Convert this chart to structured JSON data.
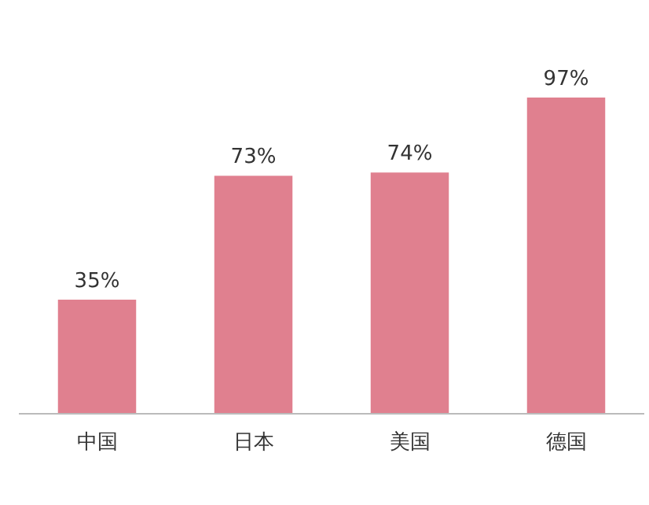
{
  "chart_data": {
    "type": "bar",
    "categories": [
      "中国",
      "日本",
      "美国",
      "德国"
    ],
    "values": [
      35,
      73,
      74,
      97
    ],
    "value_labels": [
      "35%",
      "73%",
      "74%",
      "97%"
    ],
    "color": "#e0808f"
  }
}
